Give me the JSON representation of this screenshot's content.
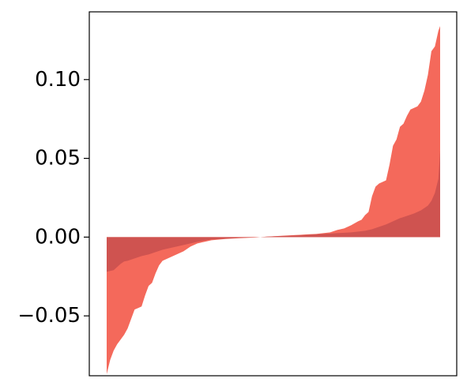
{
  "chart_data": {
    "type": "area",
    "title": "",
    "xlabel": "",
    "ylabel": "",
    "xlim": [
      0,
      100
    ],
    "ylim": [
      -0.088,
      0.143
    ],
    "grid": false,
    "legend": "none",
    "y_ticks": [
      {
        "value": 0.1,
        "label": "0.10"
      },
      {
        "value": 0.05,
        "label": "0.05"
      },
      {
        "value": 0.0,
        "label": "0.00"
      },
      {
        "value": -0.05,
        "label": "−0.05"
      }
    ],
    "series": [
      {
        "color": "#f4695b",
        "points": [
          [
            0,
            -0.087
          ],
          [
            1,
            -0.078
          ],
          [
            2,
            -0.072
          ],
          [
            3,
            -0.068
          ],
          [
            4,
            -0.065
          ],
          [
            5,
            -0.062
          ],
          [
            6,
            -0.058
          ],
          [
            7,
            -0.052
          ],
          [
            8,
            -0.046
          ],
          [
            9,
            -0.045
          ],
          [
            10,
            -0.044
          ],
          [
            11,
            -0.037
          ],
          [
            12,
            -0.031
          ],
          [
            13,
            -0.029
          ],
          [
            14,
            -0.023
          ],
          [
            15,
            -0.018
          ],
          [
            16,
            -0.015
          ],
          [
            17,
            -0.014
          ],
          [
            18,
            -0.013
          ],
          [
            19,
            -0.012
          ],
          [
            20,
            -0.011
          ],
          [
            22,
            -0.009
          ],
          [
            24,
            -0.006
          ],
          [
            26,
            -0.004
          ],
          [
            28,
            -0.003
          ],
          [
            30,
            -0.002
          ],
          [
            34,
            -0.0012
          ],
          [
            38,
            -0.0007
          ],
          [
            42,
            -0.0003
          ],
          [
            44,
            0.0
          ],
          [
            46,
            0.0003
          ],
          [
            50,
            0.0008
          ],
          [
            54,
            0.0013
          ],
          [
            58,
            0.0018
          ],
          [
            60,
            0.002
          ],
          [
            62,
            0.0025
          ],
          [
            64,
            0.003
          ],
          [
            66,
            0.0045
          ],
          [
            68,
            0.0055
          ],
          [
            70,
            0.0075
          ],
          [
            72,
            0.01
          ],
          [
            73,
            0.011
          ],
          [
            74,
            0.014
          ],
          [
            75,
            0.016
          ],
          [
            76,
            0.026
          ],
          [
            77,
            0.032
          ],
          [
            78,
            0.034
          ],
          [
            79,
            0.035
          ],
          [
            80,
            0.036
          ],
          [
            81,
            0.046
          ],
          [
            82,
            0.058
          ],
          [
            83,
            0.062
          ],
          [
            84,
            0.07
          ],
          [
            85,
            0.072
          ],
          [
            86,
            0.077
          ],
          [
            87,
            0.081
          ],
          [
            88,
            0.082
          ],
          [
            89,
            0.083
          ],
          [
            90,
            0.086
          ],
          [
            91,
            0.093
          ],
          [
            92,
            0.103
          ],
          [
            93,
            0.118
          ],
          [
            94,
            0.121
          ],
          [
            95,
            0.131
          ],
          [
            95.5,
            0.134
          ]
        ]
      },
      {
        "color": "#cf5350",
        "points": [
          [
            0,
            -0.022
          ],
          [
            1,
            -0.0215
          ],
          [
            2,
            -0.021
          ],
          [
            3,
            -0.019
          ],
          [
            4,
            -0.017
          ],
          [
            5,
            -0.0155
          ],
          [
            6,
            -0.015
          ],
          [
            8,
            -0.0135
          ],
          [
            10,
            -0.012
          ],
          [
            12,
            -0.011
          ],
          [
            14,
            -0.0095
          ],
          [
            16,
            -0.008
          ],
          [
            18,
            -0.007
          ],
          [
            20,
            -0.006
          ],
          [
            22,
            -0.005
          ],
          [
            24,
            -0.004
          ],
          [
            26,
            -0.003
          ],
          [
            28,
            -0.0022
          ],
          [
            30,
            -0.0015
          ],
          [
            34,
            -0.001
          ],
          [
            38,
            -0.0005
          ],
          [
            42,
            -0.0002
          ],
          [
            44,
            0.0
          ],
          [
            46,
            0.0003
          ],
          [
            50,
            0.0007
          ],
          [
            54,
            0.001
          ],
          [
            58,
            0.0015
          ],
          [
            62,
            0.002
          ],
          [
            66,
            0.0025
          ],
          [
            70,
            0.003
          ],
          [
            74,
            0.004
          ],
          [
            76,
            0.005
          ],
          [
            78,
            0.0065
          ],
          [
            80,
            0.008
          ],
          [
            82,
            0.01
          ],
          [
            84,
            0.012
          ],
          [
            86,
            0.0135
          ],
          [
            88,
            0.015
          ],
          [
            90,
            0.017
          ],
          [
            92,
            0.02
          ],
          [
            93,
            0.023
          ],
          [
            94,
            0.028
          ],
          [
            95,
            0.037
          ],
          [
            95.5,
            0.055
          ]
        ]
      }
    ]
  }
}
